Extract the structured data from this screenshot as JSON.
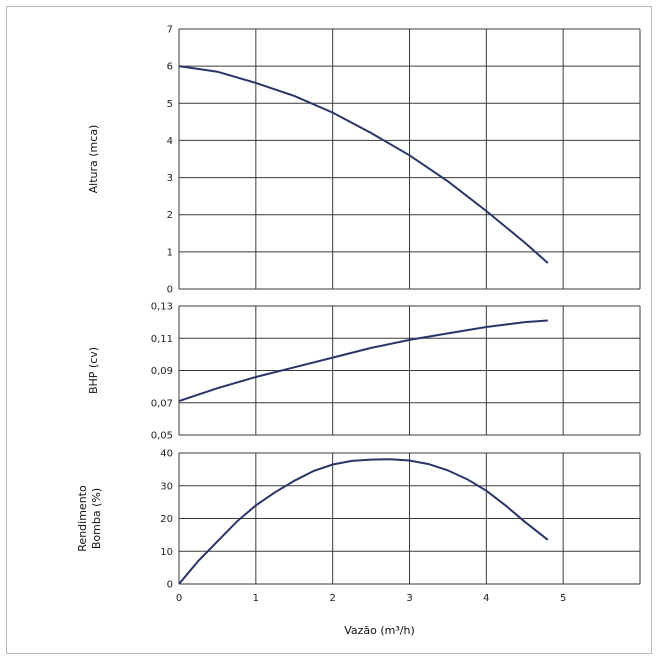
{
  "chart_data": [
    {
      "type": "line",
      "ylabel": "Altura (mca)",
      "ylim": [
        0,
        7
      ],
      "yticks": [
        "0",
        "1",
        "2",
        "3",
        "4",
        "5",
        "6",
        "7"
      ],
      "xlim": [
        0,
        6
      ],
      "series": [
        {
          "x": [
            0,
            0.5,
            1,
            1.5,
            2,
            2.5,
            3,
            3.5,
            4,
            4.5,
            4.8
          ],
          "y": [
            6.0,
            5.85,
            5.55,
            5.2,
            4.75,
            4.2,
            3.6,
            2.9,
            2.1,
            1.25,
            0.7
          ]
        }
      ]
    },
    {
      "type": "line",
      "ylabel": "BHP (cv)",
      "ylim": [
        0.05,
        0.13
      ],
      "yticks": [
        "0,05",
        "0,07",
        "0,09",
        "0,11",
        "0,13"
      ],
      "xlim": [
        0,
        6
      ],
      "series": [
        {
          "x": [
            0,
            0.5,
            1,
            1.5,
            2,
            2.5,
            3,
            3.5,
            4,
            4.5,
            4.8
          ],
          "y": [
            0.071,
            0.079,
            0.086,
            0.092,
            0.098,
            0.104,
            0.109,
            0.113,
            0.117,
            0.12,
            0.121
          ]
        }
      ]
    },
    {
      "type": "line",
      "ylabel": "Rendimento Bomba (%)",
      "ylabel_lines": [
        "Rendimento",
        "Bomba (%)"
      ],
      "ylim": [
        0,
        40
      ],
      "yticks": [
        "0",
        "10",
        "20",
        "30",
        "40"
      ],
      "xlim": [
        0,
        6
      ],
      "xticks": [
        "0",
        "1",
        "2",
        "3",
        "4",
        "5"
      ],
      "xlabel": "Vazão (m³/h)",
      "series": [
        {
          "x": [
            0,
            0.25,
            0.5,
            0.75,
            1,
            1.25,
            1.5,
            1.75,
            2,
            2.25,
            2.5,
            2.75,
            3,
            3.25,
            3.5,
            3.75,
            4,
            4.25,
            4.5,
            4.8
          ],
          "y": [
            0,
            7,
            13,
            19,
            24,
            28,
            31.5,
            34.5,
            36.5,
            37.6,
            38,
            38.1,
            37.7,
            36.6,
            34.7,
            32,
            28.5,
            24,
            19,
            13.5
          ]
        }
      ]
    }
  ]
}
